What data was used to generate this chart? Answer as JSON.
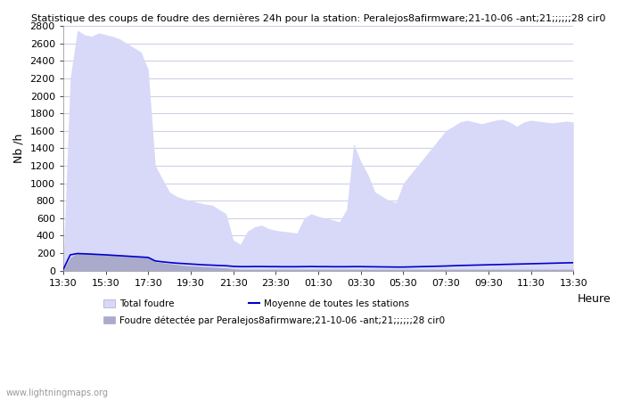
{
  "title": "Statistique des coups de foudre des dernières 24h pour la station: Peralejos8afirmware;21-10-06 -ant;21;;;;;;28 cir0",
  "ylabel": "Nb /h",
  "ylim": [
    0,
    2800
  ],
  "yticks": [
    0,
    200,
    400,
    600,
    800,
    1000,
    1200,
    1400,
    1600,
    1800,
    2000,
    2200,
    2400,
    2600,
    2800
  ],
  "xtick_labels": [
    "13:30",
    "15:30",
    "17:30",
    "19:30",
    "21:30",
    "23:30",
    "01:30",
    "03:30",
    "05:30",
    "07:30",
    "09:30",
    "11:30",
    "13:30"
  ],
  "background_color": "#ffffff",
  "grid_color": "#d0d0e8",
  "fill_total_color": "#d8d8f8",
  "fill_station_color": "#aaaacc",
  "line_color": "#0000cc",
  "watermark": "www.lightningmaps.org",
  "legend": {
    "total_foudre": "Total foudre",
    "moyenne": "Moyenne de toutes les stations",
    "foudre_detectee": "Foudre détectée par Peralejos8afirmware;21-10-06 -ant;21;;;;;;28 cir0"
  },
  "total_foudre": [
    50,
    2200,
    2750,
    2700,
    2680,
    2720,
    2700,
    2680,
    2650,
    2600,
    2550,
    2500,
    2300,
    1200,
    1050,
    900,
    850,
    820,
    800,
    780,
    760,
    750,
    700,
    650,
    350,
    300,
    450,
    500,
    520,
    480,
    460,
    450,
    440,
    430,
    600,
    650,
    620,
    600,
    580,
    560,
    700,
    1450,
    1250,
    1100,
    900,
    850,
    800,
    780,
    1000,
    1100,
    1200,
    1300,
    1400,
    1500,
    1600,
    1650,
    1700,
    1720,
    1700,
    1680,
    1700,
    1720,
    1730,
    1700,
    1650,
    1700,
    1720,
    1710,
    1700,
    1690,
    1700,
    1710,
    1700
  ],
  "foudre_detectee": [
    0,
    150,
    200,
    195,
    190,
    185,
    180,
    175,
    170,
    165,
    160,
    155,
    150,
    100,
    90,
    80,
    70,
    60,
    55,
    50,
    45,
    40,
    35,
    30,
    20,
    15,
    15,
    15,
    15,
    15,
    15,
    15,
    15,
    15,
    15,
    15,
    15,
    15,
    15,
    15,
    15,
    15,
    15,
    15,
    15,
    15,
    15,
    15,
    15,
    15,
    15,
    15,
    15,
    15,
    15,
    15,
    15,
    15,
    15,
    15,
    15,
    15,
    15,
    15,
    15,
    15,
    15,
    15,
    15,
    15,
    15,
    15,
    15
  ],
  "moyenne_line": [
    10,
    180,
    195,
    192,
    188,
    184,
    180,
    175,
    170,
    165,
    160,
    155,
    150,
    110,
    100,
    92,
    85,
    80,
    75,
    70,
    65,
    62,
    58,
    55,
    48,
    45,
    45,
    46,
    46,
    45,
    45,
    44,
    44,
    44,
    45,
    46,
    45,
    45,
    44,
    44,
    44,
    45,
    45,
    44,
    43,
    42,
    41,
    40,
    40,
    42,
    44,
    46,
    48,
    50,
    52,
    55,
    58,
    60,
    62,
    64,
    66,
    68,
    70,
    72,
    74,
    76,
    78,
    80,
    82,
    84,
    86,
    88,
    90
  ]
}
